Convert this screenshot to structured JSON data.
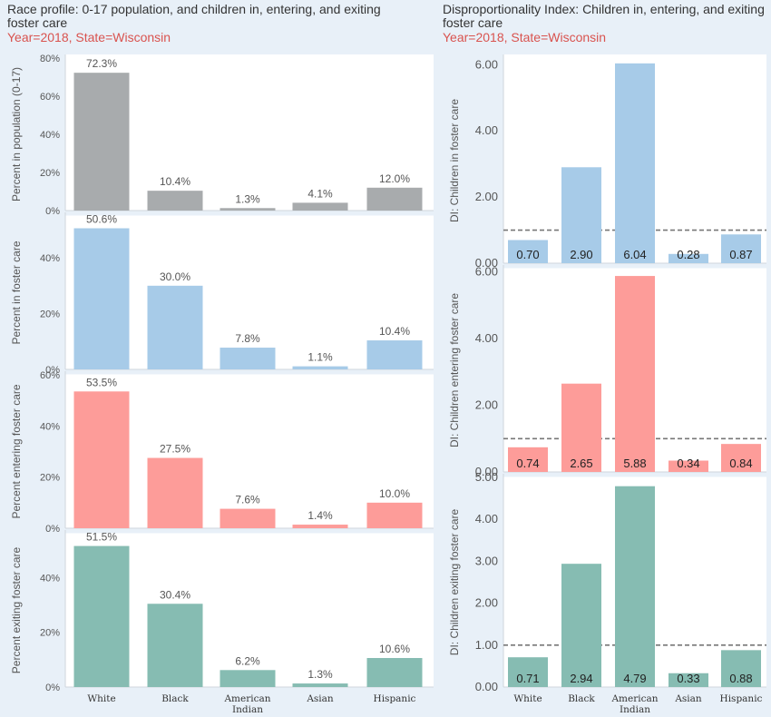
{
  "left_panel": {
    "title": "Race profile: 0-17 population, and children in, entering, and exiting foster care",
    "subtitle": "Year=2018, State=Wisconsin"
  },
  "right_panel": {
    "title": "Disproportionality Index: Children in, entering, and exiting foster care",
    "subtitle": "Year=2018, State=Wisconsin"
  },
  "colors": {
    "gray": "#a8abad",
    "blue": "#a7cbe8",
    "red": "#fd9c99",
    "teal": "#86bcb2"
  },
  "chart_data": [
    {
      "type": "bar",
      "panel": "left",
      "categories": [
        "White",
        "Black",
        "American Indian",
        "Asian",
        "Hispanic"
      ],
      "values": [
        72.3,
        10.4,
        1.3,
        4.1,
        12.0
      ],
      "labels": [
        "72.3%",
        "10.4%",
        "1.3%",
        "4.1%",
        "12.0%"
      ],
      "ylabel": "Percent in population (0-17)",
      "ylim": [
        0,
        80
      ],
      "yticks": [
        0,
        20,
        40,
        60,
        80
      ],
      "ytick_labels": [
        "0%",
        "20%",
        "40%",
        "60%",
        "80%"
      ],
      "color": "gray"
    },
    {
      "type": "bar",
      "panel": "left",
      "categories": [
        "White",
        "Black",
        "American Indian",
        "Asian",
        "Hispanic"
      ],
      "values": [
        50.6,
        30.0,
        7.8,
        1.1,
        10.4
      ],
      "labels": [
        "50.6%",
        "30.0%",
        "7.8%",
        "1.1%",
        "10.4%"
      ],
      "ylabel": "Percent in foster care",
      "ylim": [
        0,
        55
      ],
      "yticks": [
        0,
        20,
        40
      ],
      "ytick_labels": [
        "0%",
        "20%",
        "40%"
      ],
      "color": "blue"
    },
    {
      "type": "bar",
      "panel": "left",
      "categories": [
        "White",
        "Black",
        "American Indian",
        "Asian",
        "Hispanic"
      ],
      "values": [
        53.5,
        27.5,
        7.6,
        1.4,
        10.0
      ],
      "labels": [
        "53.5%",
        "27.5%",
        "7.6%",
        "1.4%",
        "10.0%"
      ],
      "ylabel": "Percent entering foster care",
      "ylim": [
        0,
        60
      ],
      "yticks": [
        0,
        20,
        40,
        60
      ],
      "ytick_labels": [
        "0%",
        "20%",
        "40%",
        "60%"
      ],
      "color": "red"
    },
    {
      "type": "bar",
      "panel": "left",
      "categories": [
        "White",
        "Black",
        "American Indian",
        "Asian",
        "Hispanic"
      ],
      "values": [
        51.5,
        30.4,
        6.2,
        1.3,
        10.6
      ],
      "labels": [
        "51.5%",
        "30.4%",
        "6.2%",
        "1.3%",
        "10.6%"
      ],
      "ylabel": "Percent exiting foster care",
      "ylim": [
        0,
        56
      ],
      "yticks": [
        0,
        20,
        40
      ],
      "ytick_labels": [
        "0%",
        "20%",
        "40%"
      ],
      "color": "teal",
      "show_xlabels": true
    },
    {
      "type": "bar",
      "panel": "right",
      "categories": [
        "White",
        "Black",
        "American Indian",
        "Asian",
        "Hispanic"
      ],
      "values": [
        0.7,
        2.9,
        6.04,
        0.28,
        0.87
      ],
      "labels": [
        "0.70",
        "2.90",
        "6.04",
        "0.28",
        "0.87"
      ],
      "ylabel": "DI: Children in foster care",
      "ylim": [
        0,
        6.2
      ],
      "yticks": [
        0,
        2,
        4,
        6
      ],
      "ytick_labels": [
        "0.00",
        "2.00",
        "4.00",
        "6.00"
      ],
      "reference_line": 1.0,
      "color": "blue"
    },
    {
      "type": "bar",
      "panel": "right",
      "categories": [
        "White",
        "Black",
        "American Indian",
        "Asian",
        "Hispanic"
      ],
      "values": [
        0.74,
        2.65,
        5.88,
        0.34,
        0.84
      ],
      "labels": [
        "0.74",
        "2.65",
        "5.88",
        "0.34",
        "0.84"
      ],
      "ylabel": "DI: Children entering foster care",
      "ylim": [
        0,
        6.1
      ],
      "yticks": [
        0,
        2,
        4,
        6
      ],
      "ytick_labels": [
        "0.00",
        "2.00",
        "4.00",
        "6.00"
      ],
      "reference_line": 1.0,
      "color": "red"
    },
    {
      "type": "bar",
      "panel": "right",
      "categories": [
        "White",
        "Black",
        "American Indian",
        "Asian",
        "Hispanic"
      ],
      "values": [
        0.71,
        2.94,
        4.79,
        0.33,
        0.88
      ],
      "labels": [
        "0.71",
        "2.94",
        "4.79",
        "0.33",
        "0.88"
      ],
      "ylabel": "DI: Children exiting foster care",
      "ylim": [
        0,
        5.0
      ],
      "yticks": [
        0,
        1,
        2,
        3,
        4,
        5
      ],
      "ytick_labels": [
        "0.00",
        "1.00",
        "2.00",
        "3.00",
        "4.00",
        "5.00"
      ],
      "reference_line": 1.0,
      "color": "teal",
      "show_xlabels": true
    }
  ]
}
